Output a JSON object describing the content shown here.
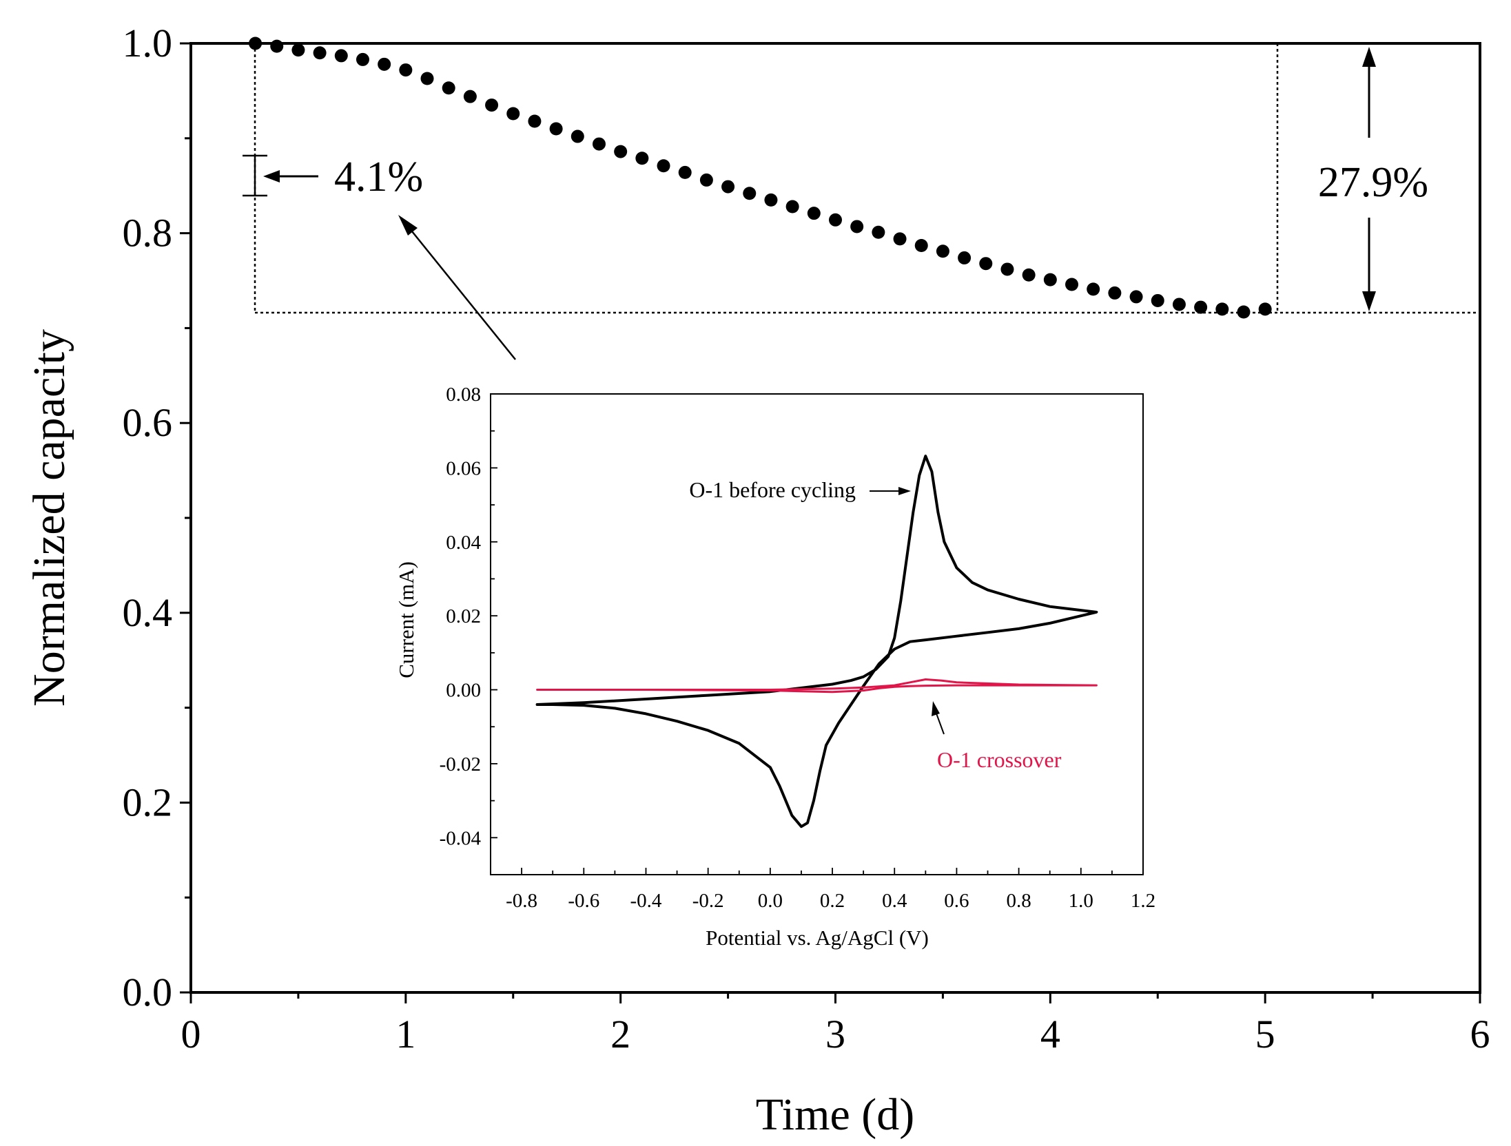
{
  "chart_data": [
    {
      "type": "scatter",
      "xlabel": "Time (d)",
      "ylabel": "Normalized capacity",
      "xlim": [
        0,
        6
      ],
      "ylim": [
        0,
        1.0
      ],
      "xticks": [
        "0",
        "1",
        "2",
        "3",
        "4",
        "5",
        "6"
      ],
      "yticks": [
        "0.0",
        "0.2",
        "0.4",
        "0.6",
        "0.8",
        "1.0"
      ],
      "series": [
        {
          "name": "Normalized capacity",
          "x": [
            0.3,
            0.4,
            0.5,
            0.6,
            0.7,
            0.8,
            0.9,
            1.0,
            1.1,
            1.2,
            1.3,
            1.4,
            1.5,
            1.6,
            1.7,
            1.8,
            1.9,
            2.0,
            2.1,
            2.2,
            2.3,
            2.4,
            2.5,
            2.6,
            2.7,
            2.8,
            2.9,
            3.0,
            3.1,
            3.2,
            3.3,
            3.4,
            3.5,
            3.6,
            3.7,
            3.8,
            3.9,
            4.0,
            4.1,
            4.2,
            4.3,
            4.4,
            4.5,
            4.6,
            4.7,
            4.8,
            4.9,
            5.0
          ],
          "y": [
            1.0,
            0.997,
            0.993,
            0.99,
            0.987,
            0.983,
            0.978,
            0.972,
            0.963,
            0.953,
            0.944,
            0.935,
            0.926,
            0.918,
            0.91,
            0.902,
            0.894,
            0.886,
            0.879,
            0.871,
            0.864,
            0.856,
            0.849,
            0.842,
            0.835,
            0.828,
            0.821,
            0.814,
            0.807,
            0.801,
            0.794,
            0.787,
            0.781,
            0.774,
            0.768,
            0.762,
            0.756,
            0.751,
            0.746,
            0.741,
            0.737,
            0.733,
            0.729,
            0.725,
            0.722,
            0.72,
            0.717,
            0.72
          ]
        }
      ],
      "annotations": [
        {
          "label": "4.1%",
          "bracket_y": [
            0.84,
            0.88
          ]
        },
        {
          "label": "27.9%",
          "bracket_y": [
            0.72,
            1.0
          ]
        }
      ],
      "reference_lines": {
        "x": [
          0.3,
          5.05
        ],
        "y": 0.72
      }
    },
    {
      "type": "line",
      "xlabel": "Potential vs. Ag/AgCl (V)",
      "ylabel": "Current (mA)",
      "xlim": [
        -0.9,
        1.2
      ],
      "ylim": [
        -0.05,
        0.08
      ],
      "xticks": [
        "-0.8",
        "-0.6",
        "-0.4",
        "-0.2",
        "0.0",
        "0.2",
        "0.4",
        "0.6",
        "0.8",
        "1.0",
        "1.2"
      ],
      "yticks": [
        "-0.04",
        "-0.02",
        "0.00",
        "0.02",
        "0.04",
        "0.06",
        "0.08"
      ],
      "series": [
        {
          "name": "O-1 before cycling",
          "color": "#000000",
          "x": [
            -0.75,
            -0.6,
            -0.4,
            -0.2,
            0.0,
            0.1,
            0.2,
            0.26,
            0.3,
            0.34,
            0.38,
            0.4,
            0.42,
            0.44,
            0.46,
            0.48,
            0.5,
            0.52,
            0.54,
            0.56,
            0.6,
            0.65,
            0.7,
            0.8,
            0.9,
            1.0,
            1.05,
            1.0,
            0.9,
            0.8,
            0.7,
            0.6,
            0.5,
            0.45,
            0.4,
            0.35,
            0.3,
            0.26,
            0.22,
            0.18,
            0.16,
            0.14,
            0.12,
            0.1,
            0.07,
            0.03,
            0.0,
            -0.1,
            -0.2,
            -0.3,
            -0.4,
            -0.5,
            -0.6,
            -0.7,
            -0.75
          ],
          "y": [
            -0.004,
            -0.0035,
            -0.0025,
            -0.0015,
            -0.0005,
            0.0005,
            0.0015,
            0.0025,
            0.0035,
            0.0055,
            0.009,
            0.014,
            0.024,
            0.036,
            0.048,
            0.058,
            0.0632,
            0.059,
            0.048,
            0.04,
            0.033,
            0.029,
            0.027,
            0.0245,
            0.0225,
            0.0215,
            0.021,
            0.02,
            0.018,
            0.0165,
            0.0155,
            0.0145,
            0.0135,
            0.013,
            0.011,
            0.007,
            0.001,
            -0.004,
            -0.009,
            -0.015,
            -0.022,
            -0.03,
            -0.036,
            -0.037,
            -0.034,
            -0.026,
            -0.021,
            -0.0145,
            -0.011,
            -0.0085,
            -0.0065,
            -0.005,
            -0.0042,
            -0.004,
            -0.004
          ]
        },
        {
          "name": "O-1 crossover",
          "color": "#e0164a",
          "x": [
            -0.75,
            -0.4,
            0.0,
            0.2,
            0.3,
            0.4,
            0.45,
            0.5,
            0.55,
            0.6,
            0.8,
            1.05,
            0.8,
            0.6,
            0.5,
            0.45,
            0.4,
            0.35,
            0.3,
            0.2,
            0.1,
            0.0,
            -0.4,
            -0.75
          ],
          "y": [
            0.0,
            0.0,
            0.0,
            0.0003,
            0.0006,
            0.0012,
            0.002,
            0.0028,
            0.0025,
            0.002,
            0.0014,
            0.0012,
            0.0012,
            0.0012,
            0.0011,
            0.001,
            0.0008,
            0.0004,
            -0.0002,
            -0.0006,
            -0.0004,
            -0.0002,
            0.0,
            0.0
          ]
        }
      ],
      "labels": {
        "before": "O-1 before cycling",
        "crossover": "O-1 crossover"
      }
    }
  ],
  "colors": {
    "axis": "#000000",
    "dots": "#000000",
    "crossover": "#e0164a"
  }
}
